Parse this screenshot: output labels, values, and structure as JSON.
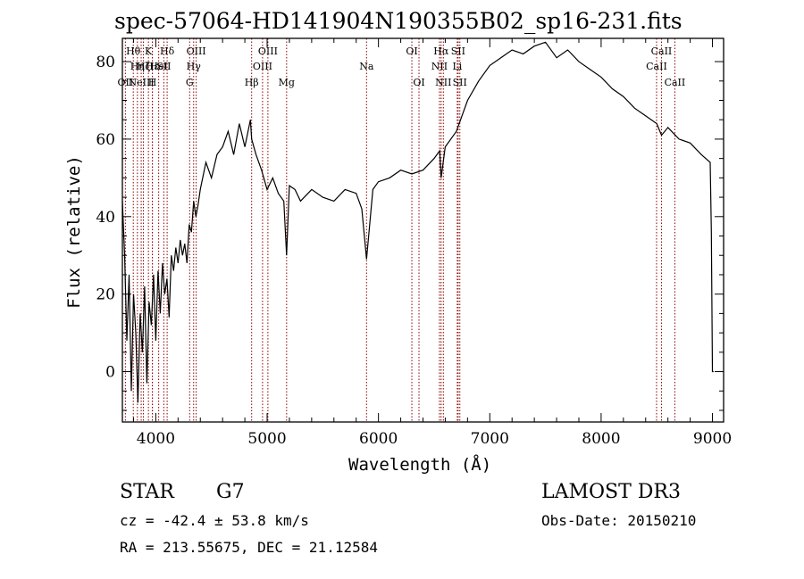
{
  "chart_data": {
    "type": "line",
    "title": "spec-57064-HD141904N190355B02_sp16-231.fits",
    "xlabel": "Wavelength (Å)",
    "ylabel": "Flux (relative)",
    "xlim": [
      3700,
      9100
    ],
    "ylim": [
      -13,
      86
    ],
    "xticks": [
      4000,
      5000,
      6000,
      7000,
      8000,
      9000
    ],
    "yticks": [
      0,
      20,
      40,
      60,
      80
    ],
    "series": [
      {
        "x": [
          3700,
          3720,
          3740,
          3760,
          3780,
          3800,
          3820,
          3840,
          3860,
          3880,
          3900,
          3920,
          3940,
          3960,
          3980,
          4000,
          4020,
          4040,
          4060,
          4080,
          4100,
          4120,
          4140,
          4160,
          4180,
          4200,
          4220,
          4240,
          4260,
          4280,
          4300,
          4320,
          4340,
          4360,
          4380,
          4400,
          4450,
          4500,
          4550,
          4600,
          4650,
          4700,
          4750,
          4800,
          4850,
          4861,
          4900,
          4950,
          5000,
          5050,
          5100,
          5150,
          5175,
          5200,
          5250,
          5300,
          5400,
          5500,
          5600,
          5700,
          5800,
          5850,
          5893,
          5950,
          6000,
          6100,
          6200,
          6300,
          6400,
          6500,
          6550,
          6563,
          6600,
          6700,
          6800,
          6900,
          7000,
          7100,
          7200,
          7300,
          7400,
          7500,
          7600,
          7700,
          7800,
          7900,
          8000,
          8100,
          8200,
          8300,
          8400,
          8500,
          8542,
          8600,
          8700,
          8800,
          8900,
          8980,
          8990,
          9000,
          9010
        ],
        "y": [
          44,
          30,
          8,
          25,
          -5,
          20,
          10,
          -8,
          15,
          5,
          22,
          -3,
          18,
          12,
          25,
          8,
          26,
          15,
          28,
          20,
          24,
          14,
          30,
          26,
          32,
          28,
          34,
          30,
          33,
          28,
          38,
          36,
          44,
          40,
          43,
          47,
          54,
          50,
          56,
          58,
          62,
          56,
          64,
          58,
          65,
          60,
          56,
          52,
          47,
          50,
          46,
          44,
          30,
          48,
          47,
          44,
          47,
          45,
          44,
          47,
          46,
          42,
          29,
          47,
          49,
          50,
          52,
          51,
          52,
          55,
          57,
          50,
          58,
          62,
          70,
          75,
          79,
          81,
          83,
          82,
          84,
          85,
          81,
          83,
          80,
          78,
          76,
          73,
          71,
          68,
          66,
          64,
          61,
          63,
          60,
          59,
          56,
          54,
          36,
          0,
          0
        ]
      }
    ],
    "lines": [
      {
        "x": 3727,
        "labels": [
          "OII"
        ],
        "rows": [
          2
        ]
      },
      {
        "x": 3798,
        "labels": [
          "Hθ"
        ],
        "rows": [
          0
        ]
      },
      {
        "x": 3835,
        "labels": [
          "Hη"
        ],
        "rows": [
          1
        ]
      },
      {
        "x": 3869,
        "labels": [
          "NeIII"
        ],
        "rows": [
          2
        ]
      },
      {
        "x": 3889,
        "labels": [
          "Hζ"
        ],
        "rows": [
          1
        ]
      },
      {
        "x": 3934,
        "labels": [
          "K"
        ],
        "rows": [
          0
        ]
      },
      {
        "x": 3969,
        "labels": [
          "H"
        ],
        "rows": [
          2
        ]
      },
      {
        "x": 3970,
        "labels": [
          "Hε"
        ],
        "rows": [
          1
        ]
      },
      {
        "x": 4026,
        "labels": [
          "HeI"
        ],
        "rows": [
          1
        ]
      },
      {
        "x": 4072,
        "labels": [
          "SII"
        ],
        "rows": [
          1
        ]
      },
      {
        "x": 4102,
        "labels": [
          "Hδ"
        ],
        "rows": [
          0
        ]
      },
      {
        "x": 4304,
        "labels": [
          "G"
        ],
        "rows": [
          2
        ]
      },
      {
        "x": 4340,
        "labels": [
          "Hγ"
        ],
        "rows": [
          1
        ]
      },
      {
        "x": 4363,
        "labels": [
          "OIII"
        ],
        "rows": [
          0
        ]
      },
      {
        "x": 4861,
        "labels": [
          "Hβ"
        ],
        "rows": [
          2
        ]
      },
      {
        "x": 4959,
        "labels": [
          "OIII"
        ],
        "rows": [
          1
        ]
      },
      {
        "x": 5007,
        "labels": [
          "OIII"
        ],
        "rows": [
          0
        ]
      },
      {
        "x": 5175,
        "labels": [
          "Mg"
        ],
        "rows": [
          2
        ]
      },
      {
        "x": 5893,
        "labels": [
          "Na"
        ],
        "rows": [
          1
        ]
      },
      {
        "x": 6300,
        "labels": [
          "OI"
        ],
        "rows": [
          0
        ]
      },
      {
        "x": 6364,
        "labels": [
          "OI"
        ],
        "rows": [
          2
        ]
      },
      {
        "x": 6548,
        "labels": [
          "NII"
        ],
        "rows": [
          1
        ]
      },
      {
        "x": 6563,
        "labels": [
          "Hα"
        ],
        "rows": [
          0
        ]
      },
      {
        "x": 6583,
        "labels": [
          "NII"
        ],
        "rows": [
          2
        ]
      },
      {
        "x": 6708,
        "labels": [
          "Li"
        ],
        "rows": [
          1
        ]
      },
      {
        "x": 6716,
        "labels": [
          "SII"
        ],
        "rows": [
          0
        ]
      },
      {
        "x": 6731,
        "labels": [
          "SII"
        ],
        "rows": [
          2
        ]
      },
      {
        "x": 8498,
        "labels": [
          "CaII"
        ],
        "rows": [
          1
        ]
      },
      {
        "x": 8542,
        "labels": [
          "CaII"
        ],
        "rows": [
          0
        ]
      },
      {
        "x": 8662,
        "labels": [
          "CaII"
        ],
        "rows": [
          2
        ]
      }
    ],
    "colors": {
      "spectrum": "#000000",
      "lines": "#8b0000",
      "axes": "#000000"
    }
  },
  "info": {
    "object_class": "STAR",
    "subclass": "G7",
    "survey": "LAMOST DR3",
    "redshift_text": "cz = -42.4 ± 53.8 km/s",
    "obs_date_text": "Obs-Date: 20150210",
    "coords_text": "RA = 213.55675, DEC =  21.12584"
  }
}
